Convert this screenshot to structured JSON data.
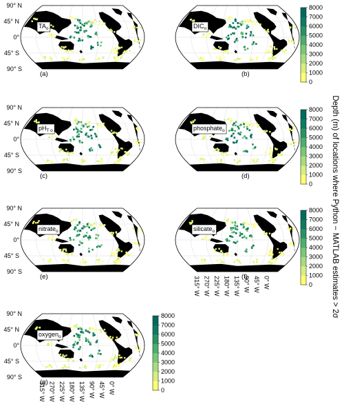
{
  "colors": {
    "ocean": "#ffffff",
    "land": "#000000",
    "colorscale": [
      "#ffff73",
      "#d6ef80",
      "#a8dc7e",
      "#79c878",
      "#4caf6b",
      "#2b9164",
      "#0e7a62",
      "#006a5e"
    ]
  },
  "side_label": "Depth (m) of locations where Python − MATLAB estimates > 2σ",
  "lat_labels": [
    "90° N",
    "45° N",
    "0°",
    "45° S",
    "90° S"
  ],
  "lon_labels": [
    "315° W",
    "270° W",
    "225° W",
    "180° W",
    "135° W",
    "90° W",
    "45° W",
    "0° W"
  ],
  "chart_data": [
    {
      "type": "scatter",
      "panel": "(a)",
      "variable": "TA",
      "subscript": "o",
      "projection": "robinson",
      "colorbar": null,
      "lat_labels": true,
      "lon_labels": false
    },
    {
      "type": "scatter",
      "panel": "(b)",
      "variable": "DIC",
      "subscript": "o",
      "projection": "robinson",
      "colorbar": {
        "ticks": [
          0,
          1000,
          2000,
          3000,
          4000,
          5000,
          6000,
          7000,
          8000
        ],
        "range": [
          0,
          8000
        ]
      },
      "lat_labels": false,
      "lon_labels": false
    },
    {
      "type": "scatter",
      "panel": "(c)",
      "variable": "pH",
      "subscript": "T o",
      "projection": "robinson",
      "colorbar": null,
      "lat_labels": true,
      "lon_labels": false
    },
    {
      "type": "scatter",
      "panel": "(d)",
      "variable": "phosphate",
      "subscript": "o",
      "projection": "robinson",
      "colorbar": {
        "ticks": [
          0,
          1000,
          2000,
          3000,
          4000,
          5000,
          6000,
          7000,
          8000
        ],
        "range": [
          0,
          8000
        ]
      },
      "lat_labels": false,
      "lon_labels": false
    },
    {
      "type": "scatter",
      "panel": "(e)",
      "variable": "nitrate",
      "subscript": "o",
      "projection": "robinson",
      "colorbar": null,
      "lat_labels": true,
      "lon_labels": false
    },
    {
      "type": "scatter",
      "panel": "(f)",
      "variable": "silicate",
      "subscript": "o",
      "projection": "robinson",
      "colorbar": {
        "ticks": [
          0,
          1000,
          2000,
          3000,
          4000,
          5000,
          6000,
          7000,
          8000
        ],
        "range": [
          0,
          8000
        ]
      },
      "lat_labels": false,
      "lon_labels": true
    },
    {
      "type": "scatter",
      "panel": "(g)",
      "variable": "oxygen",
      "subscript": "o",
      "projection": "robinson",
      "colorbar": {
        "ticks": [
          0,
          1000,
          2000,
          3000,
          4000,
          5000,
          6000,
          7000,
          8000
        ],
        "range": [
          0,
          8000
        ]
      },
      "lat_labels": true,
      "lon_labels": true
    }
  ]
}
